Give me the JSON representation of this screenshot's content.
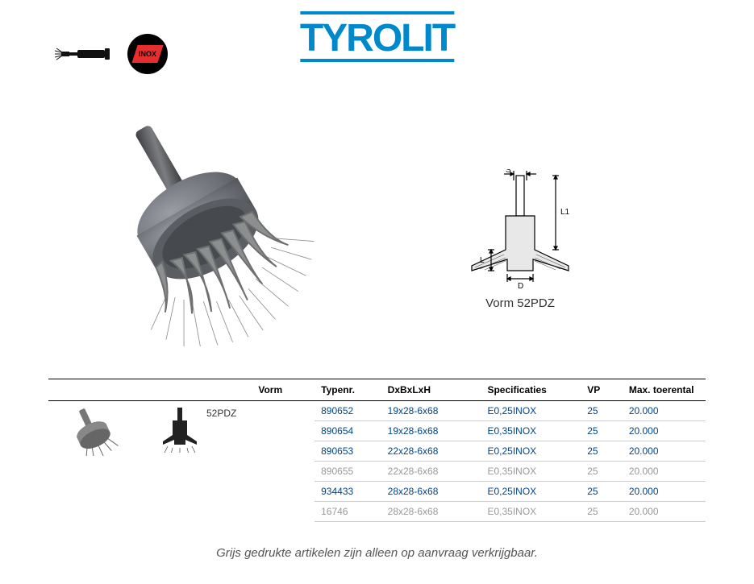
{
  "brand": {
    "name": "Tyrolit",
    "color": "#0088cc"
  },
  "badges": {
    "inox": "INOX"
  },
  "diagram": {
    "label": "Vorm 52PDZ",
    "dims": {
      "s": "S",
      "l1": "L1",
      "l": "L",
      "d": "D"
    }
  },
  "table": {
    "headers": {
      "vorm": "Vorm",
      "typenr": "Typenr.",
      "dim": "DxBxLxH",
      "spec": "Specificaties",
      "vp": "VP",
      "max": "Max. toerental"
    },
    "vorm_label": "52PDZ",
    "rows": [
      {
        "typenr": "890652",
        "dim": "19x28-6x68",
        "spec": "E0,25INOX",
        "vp": "25",
        "max": "20.000",
        "grey": false
      },
      {
        "typenr": "890654",
        "dim": "19x28-6x68",
        "spec": "E0,35INOX",
        "vp": "25",
        "max": "20.000",
        "grey": false
      },
      {
        "typenr": "890653",
        "dim": "22x28-6x68",
        "spec": "E0,25INOX",
        "vp": "25",
        "max": "20.000",
        "grey": false
      },
      {
        "typenr": "890655",
        "dim": "22x28-6x68",
        "spec": "E0,35INOX",
        "vp": "25",
        "max": "20.000",
        "grey": true
      },
      {
        "typenr": "934433",
        "dim": "28x28-6x68",
        "spec": "E0,25INOX",
        "vp": "25",
        "max": "20.000",
        "grey": false
      },
      {
        "typenr": "16746",
        "dim": "28x28-6x68",
        "spec": "E0,35INOX",
        "vp": "25",
        "max": "20.000",
        "grey": true
      }
    ]
  },
  "footer": "Grijs gedrukte artikelen zijn alleen op aanvraag verkrijgbaar."
}
